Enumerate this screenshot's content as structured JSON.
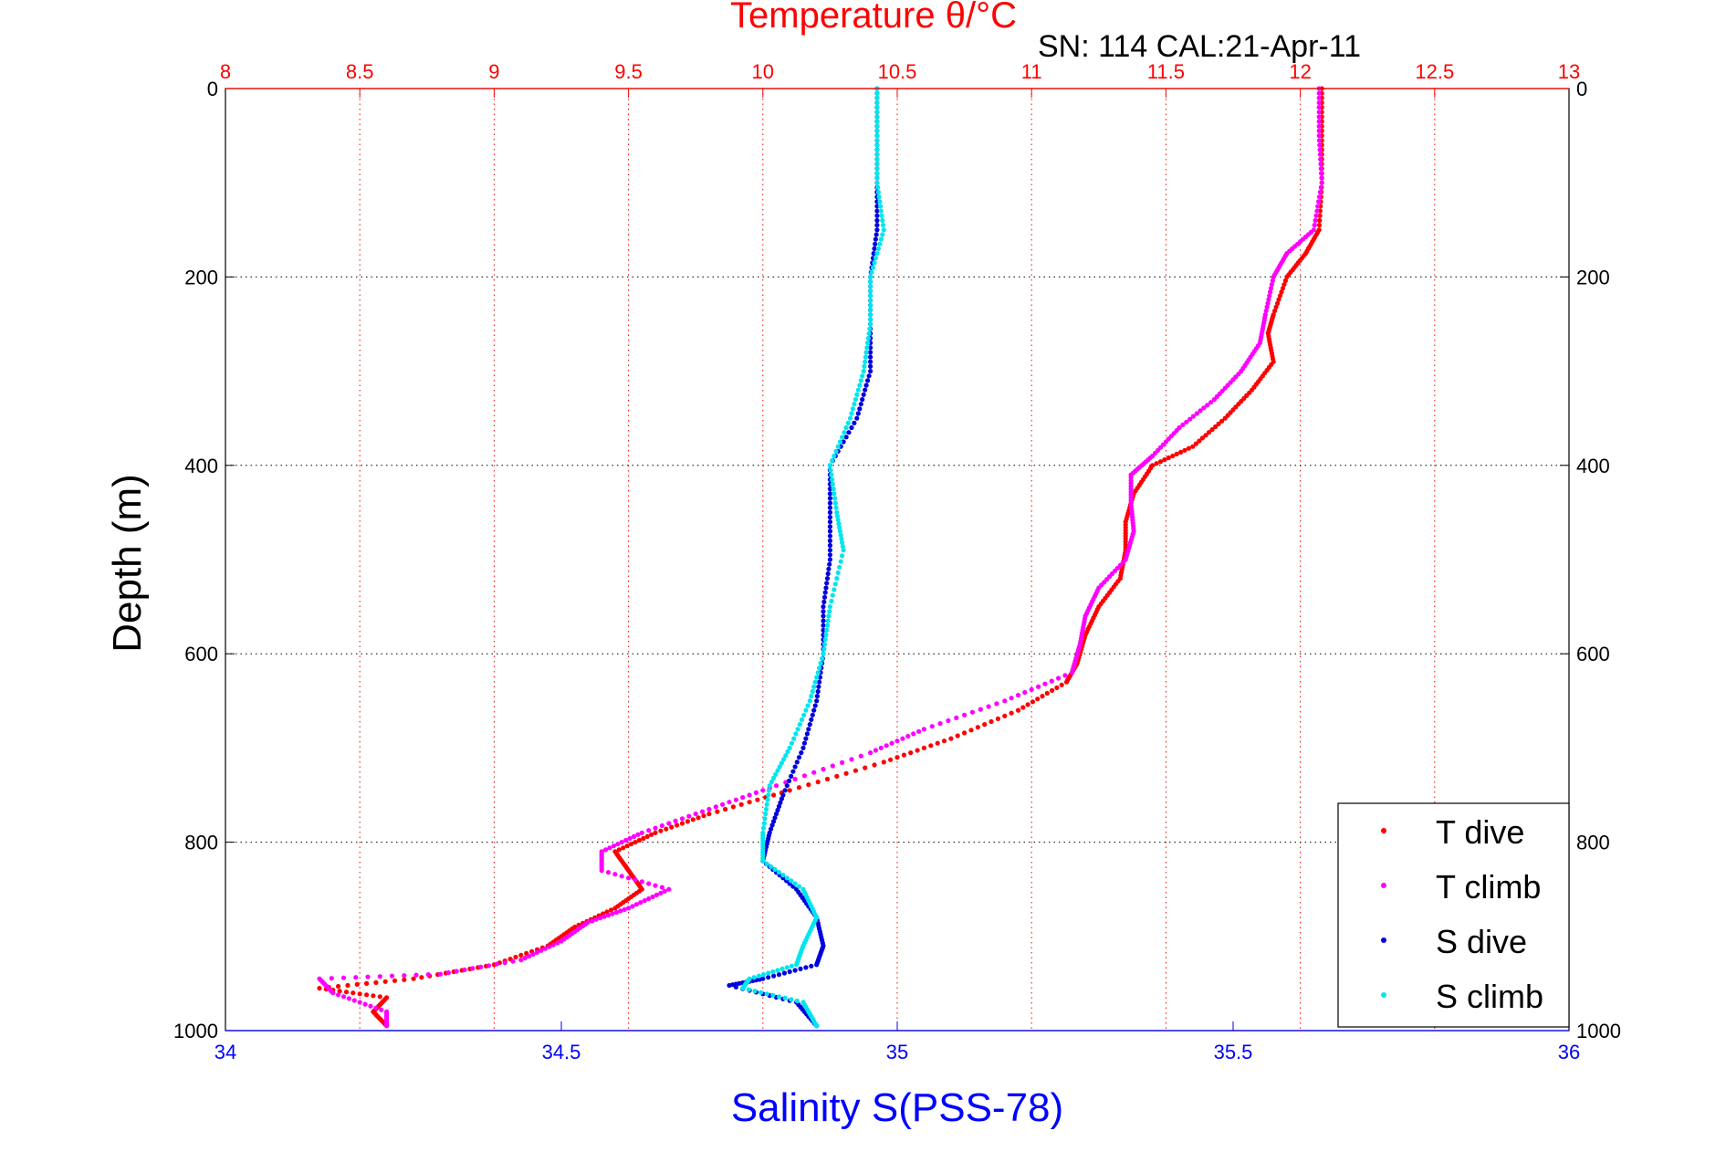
{
  "chart_data": {
    "type": "scatter",
    "title": "Temperature θ/°C",
    "subtitle": "SN: 114  CAL:21-Apr-11",
    "xlabel": "Salinity S(PSS-78)",
    "ylabel": "Depth (m)",
    "grid": true,
    "legend_position": "bottom-right",
    "axes": {
      "salinity": {
        "range": [
          34,
          36
        ],
        "ticks": [
          "34",
          "34.5",
          "35",
          "35.5",
          "36"
        ],
        "color": "#0000ff"
      },
      "temperature": {
        "range": [
          8,
          13
        ],
        "ticks": [
          "8",
          "8.5",
          "9",
          "9.5",
          "10",
          "10.5",
          "11",
          "11.5",
          "12",
          "12.5",
          "13"
        ],
        "color": "#ff0000"
      },
      "depth": {
        "range": [
          0,
          1000
        ],
        "reversed": true,
        "ticks": [
          "0",
          "200",
          "400",
          "600",
          "800",
          "1000"
        ]
      }
    },
    "series": [
      {
        "name": "T dive",
        "axis": "temperature",
        "color": "#ff0000",
        "points": [
          [
            12.08,
            0
          ],
          [
            12.08,
            50
          ],
          [
            12.08,
            100
          ],
          [
            12.07,
            150
          ],
          [
            12.02,
            175
          ],
          [
            11.95,
            200
          ],
          [
            11.9,
            240
          ],
          [
            11.88,
            260
          ],
          [
            11.9,
            290
          ],
          [
            11.82,
            320
          ],
          [
            11.72,
            350
          ],
          [
            11.6,
            380
          ],
          [
            11.45,
            400
          ],
          [
            11.38,
            430
          ],
          [
            11.35,
            460
          ],
          [
            11.35,
            490
          ],
          [
            11.33,
            520
          ],
          [
            11.25,
            550
          ],
          [
            11.2,
            580
          ],
          [
            11.17,
            610
          ],
          [
            11.13,
            630
          ],
          [
            10.95,
            660
          ],
          [
            10.7,
            690
          ],
          [
            10.45,
            715
          ],
          [
            10.1,
            745
          ],
          [
            9.8,
            770
          ],
          [
            9.6,
            790
          ],
          [
            9.45,
            810
          ],
          [
            9.5,
            830
          ],
          [
            9.55,
            850
          ],
          [
            9.45,
            870
          ],
          [
            9.3,
            890
          ],
          [
            9.2,
            910
          ],
          [
            9.0,
            930
          ],
          [
            8.7,
            945
          ],
          [
            8.35,
            955
          ],
          [
            8.6,
            965
          ],
          [
            8.55,
            980
          ],
          [
            8.6,
            995
          ]
        ]
      },
      {
        "name": "T climb",
        "axis": "temperature",
        "color": "#ff00ff",
        "points": [
          [
            12.07,
            0
          ],
          [
            12.07,
            50
          ],
          [
            12.08,
            100
          ],
          [
            12.05,
            150
          ],
          [
            11.95,
            175
          ],
          [
            11.9,
            200
          ],
          [
            11.87,
            240
          ],
          [
            11.85,
            270
          ],
          [
            11.78,
            300
          ],
          [
            11.68,
            330
          ],
          [
            11.55,
            360
          ],
          [
            11.45,
            390
          ],
          [
            11.37,
            410
          ],
          [
            11.37,
            440
          ],
          [
            11.38,
            470
          ],
          [
            11.35,
            500
          ],
          [
            11.25,
            530
          ],
          [
            11.2,
            560
          ],
          [
            11.18,
            590
          ],
          [
            11.15,
            620
          ],
          [
            10.9,
            650
          ],
          [
            10.6,
            680
          ],
          [
            10.4,
            705
          ],
          [
            10.05,
            740
          ],
          [
            9.8,
            765
          ],
          [
            9.55,
            790
          ],
          [
            9.4,
            810
          ],
          [
            9.4,
            830
          ],
          [
            9.65,
            850
          ],
          [
            9.5,
            870
          ],
          [
            9.35,
            885
          ],
          [
            9.25,
            905
          ],
          [
            9.1,
            925
          ],
          [
            8.8,
            940
          ],
          [
            8.35,
            945
          ],
          [
            8.4,
            960
          ],
          [
            8.6,
            980
          ],
          [
            8.6,
            995
          ]
        ]
      },
      {
        "name": "S dive",
        "axis": "salinity",
        "color": "#0000dd",
        "points": [
          [
            34.97,
            0
          ],
          [
            34.97,
            50
          ],
          [
            34.97,
            100
          ],
          [
            34.97,
            150
          ],
          [
            34.96,
            200
          ],
          [
            34.96,
            250
          ],
          [
            34.96,
            300
          ],
          [
            34.94,
            350
          ],
          [
            34.9,
            400
          ],
          [
            34.9,
            450
          ],
          [
            34.9,
            500
          ],
          [
            34.89,
            550
          ],
          [
            34.89,
            600
          ],
          [
            34.88,
            650
          ],
          [
            34.86,
            700
          ],
          [
            34.83,
            750
          ],
          [
            34.81,
            790
          ],
          [
            34.8,
            820
          ],
          [
            34.85,
            850
          ],
          [
            34.88,
            880
          ],
          [
            34.89,
            910
          ],
          [
            34.88,
            930
          ],
          [
            34.8,
            945
          ],
          [
            34.75,
            952
          ],
          [
            34.85,
            970
          ],
          [
            34.88,
            995
          ]
        ]
      },
      {
        "name": "S climb",
        "axis": "salinity",
        "color": "#00e5ee",
        "points": [
          [
            34.97,
            0
          ],
          [
            34.97,
            50
          ],
          [
            34.97,
            100
          ],
          [
            34.98,
            150
          ],
          [
            34.96,
            200
          ],
          [
            34.96,
            250
          ],
          [
            34.95,
            300
          ],
          [
            34.93,
            350
          ],
          [
            34.9,
            400
          ],
          [
            34.91,
            450
          ],
          [
            34.92,
            490
          ],
          [
            34.9,
            550
          ],
          [
            34.89,
            600
          ],
          [
            34.87,
            650
          ],
          [
            34.84,
            700
          ],
          [
            34.81,
            740
          ],
          [
            34.8,
            790
          ],
          [
            34.8,
            820
          ],
          [
            34.86,
            850
          ],
          [
            34.88,
            880
          ],
          [
            34.86,
            910
          ],
          [
            34.85,
            930
          ],
          [
            34.78,
            945
          ],
          [
            34.77,
            955
          ],
          [
            34.86,
            970
          ],
          [
            34.88,
            995
          ]
        ]
      }
    ]
  }
}
